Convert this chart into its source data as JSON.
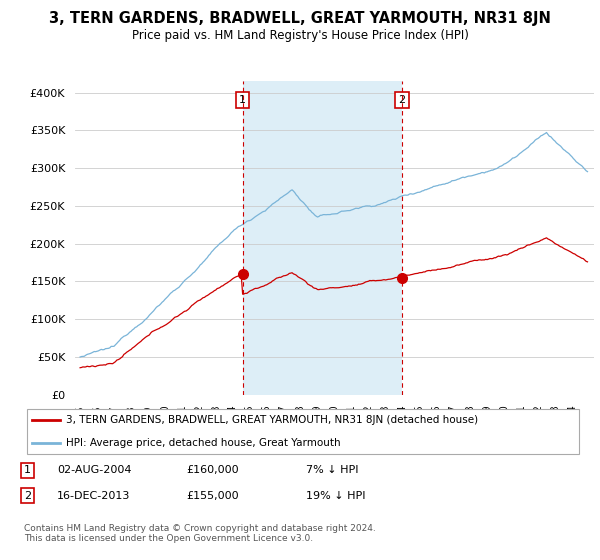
{
  "title": "3, TERN GARDENS, BRADWELL, GREAT YARMOUTH, NR31 8JN",
  "subtitle": "Price paid vs. HM Land Registry's House Price Index (HPI)",
  "ylabel_ticks": [
    "£0",
    "£50K",
    "£100K",
    "£150K",
    "£200K",
    "£250K",
    "£300K",
    "£350K",
    "£400K"
  ],
  "ytick_values": [
    0,
    50000,
    100000,
    150000,
    200000,
    250000,
    300000,
    350000,
    400000
  ],
  "ylim": [
    0,
    415000
  ],
  "xlim_start": 1994.7,
  "xlim_end": 2025.3,
  "sale1_x": 2004.58,
  "sale1_price": 160000,
  "sale2_x": 2013.96,
  "sale2_price": 155000,
  "hpi_color": "#7ab4d8",
  "hpi_shade_color": "#ddeef7",
  "property_color": "#cc0000",
  "dashed_color": "#cc0000",
  "legend_property": "3, TERN GARDENS, BRADWELL, GREAT YARMOUTH, NR31 8JN (detached house)",
  "legend_hpi": "HPI: Average price, detached house, Great Yarmouth",
  "footnote": "Contains HM Land Registry data © Crown copyright and database right 2024.\nThis data is licensed under the Open Government Licence v3.0."
}
